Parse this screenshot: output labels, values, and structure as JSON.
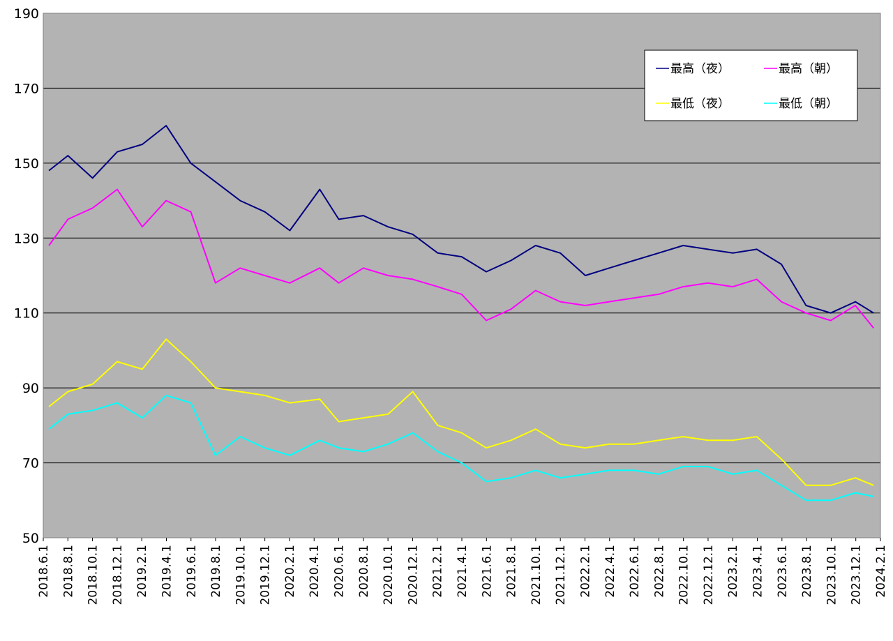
{
  "chart_data": {
    "type": "line",
    "title": "",
    "xlabel": "",
    "ylabel": "",
    "ylim": [
      50,
      190
    ],
    "yticks": [
      50,
      70,
      90,
      110,
      130,
      150,
      170,
      190
    ],
    "xlim": [
      "2018-06-01",
      "2024-02-01"
    ],
    "xtick_labels": [
      "2018.6.1",
      "2018.8.1",
      "2018.10.1",
      "2018.12.1",
      "2019.2.1",
      "2019.4.1",
      "2019.6.1",
      "2019.8.1",
      "2019.10.1",
      "2019.12.1",
      "2020.2.1",
      "2020.4.1",
      "2020.6.1",
      "2020.8.1",
      "2020.10.1",
      "2020.12.1",
      "2021.2.1",
      "2021.4.1",
      "2021.6.1",
      "2021.8.1",
      "2021.10.1",
      "2021.12.1",
      "2022.2.1",
      "2022.4.1",
      "2022.6.1",
      "2022.8.1",
      "2022.10.1",
      "2022.12.1",
      "2023.2.1",
      "2023.4.1",
      "2023.6.1",
      "2023.8.1",
      "2023.10.1",
      "2023.12.1",
      "2024.2.1"
    ],
    "grid": "horizontal",
    "background": "#B3B3B3",
    "legend_position": "top-right",
    "series": [
      {
        "name": "最高（夜）",
        "color": "#000080",
        "x": [
          "2018-06-15",
          "2018-08-01",
          "2018-10-01",
          "2018-12-01",
          "2019-02-01",
          "2019-04-01",
          "2019-06-01",
          "2019-08-01",
          "2019-10-01",
          "2019-12-01",
          "2020-02-01",
          "2020-04-15",
          "2020-06-01",
          "2020-08-01",
          "2020-10-01",
          "2020-12-01",
          "2021-02-01",
          "2021-04-01",
          "2021-06-01",
          "2021-08-01",
          "2021-10-01",
          "2021-12-01",
          "2022-02-01",
          "2022-04-01",
          "2022-06-01",
          "2022-08-01",
          "2022-10-01",
          "2022-12-01",
          "2023-02-01",
          "2023-04-01",
          "2023-06-01",
          "2023-08-01",
          "2023-10-01",
          "2023-12-01",
          "2024-01-15"
        ],
        "y": [
          148,
          152,
          146,
          153,
          155,
          160,
          150,
          145,
          140,
          137,
          132,
          143,
          135,
          136,
          133,
          131,
          126,
          125,
          121,
          124,
          128,
          126,
          120,
          122,
          124,
          126,
          128,
          127,
          126,
          127,
          123,
          112,
          110,
          113,
          110
        ]
      },
      {
        "name": "最高（朝）",
        "color": "#FF00FF",
        "x": [
          "2018-06-15",
          "2018-08-01",
          "2018-10-01",
          "2018-12-01",
          "2019-02-01",
          "2019-04-01",
          "2019-06-01",
          "2019-08-01",
          "2019-10-01",
          "2019-12-01",
          "2020-02-01",
          "2020-04-15",
          "2020-06-01",
          "2020-08-01",
          "2020-10-01",
          "2020-12-01",
          "2021-02-01",
          "2021-04-01",
          "2021-06-01",
          "2021-08-01",
          "2021-10-01",
          "2021-12-01",
          "2022-02-01",
          "2022-04-01",
          "2022-06-01",
          "2022-08-01",
          "2022-10-01",
          "2022-12-01",
          "2023-02-01",
          "2023-04-01",
          "2023-06-01",
          "2023-08-01",
          "2023-10-01",
          "2023-12-01",
          "2024-01-15"
        ],
        "y": [
          128,
          135,
          138,
          143,
          133,
          140,
          137,
          118,
          122,
          120,
          118,
          122,
          118,
          122,
          120,
          119,
          117,
          115,
          108,
          111,
          116,
          113,
          112,
          113,
          114,
          115,
          117,
          118,
          117,
          119,
          113,
          110,
          108,
          112,
          106
        ]
      },
      {
        "name": "最低（夜）",
        "color": "#FFFF00",
        "x": [
          "2018-06-15",
          "2018-08-01",
          "2018-10-01",
          "2018-12-01",
          "2019-02-01",
          "2019-04-01",
          "2019-06-01",
          "2019-08-01",
          "2019-10-01",
          "2019-12-01",
          "2020-02-01",
          "2020-04-15",
          "2020-06-01",
          "2020-08-01",
          "2020-10-01",
          "2020-12-01",
          "2021-02-01",
          "2021-04-01",
          "2021-06-01",
          "2021-08-01",
          "2021-10-01",
          "2021-12-01",
          "2022-02-01",
          "2022-04-01",
          "2022-06-01",
          "2022-08-01",
          "2022-10-01",
          "2022-12-01",
          "2023-02-01",
          "2023-04-01",
          "2023-06-01",
          "2023-08-01",
          "2023-10-01",
          "2023-12-01",
          "2024-01-15"
        ],
        "y": [
          85,
          89,
          91,
          97,
          95,
          103,
          97,
          90,
          89,
          88,
          86,
          87,
          81,
          82,
          83,
          89,
          80,
          78,
          74,
          76,
          79,
          75,
          74,
          75,
          75,
          76,
          77,
          76,
          76,
          77,
          71,
          64,
          64,
          66,
          64
        ]
      },
      {
        "name": "最低（朝）",
        "color": "#00FFFF",
        "x": [
          "2018-06-15",
          "2018-08-01",
          "2018-10-01",
          "2018-12-01",
          "2019-02-01",
          "2019-04-01",
          "2019-06-01",
          "2019-08-01",
          "2019-10-01",
          "2019-12-01",
          "2020-02-01",
          "2020-04-15",
          "2020-06-01",
          "2020-08-01",
          "2020-10-01",
          "2020-12-01",
          "2021-02-01",
          "2021-04-01",
          "2021-06-01",
          "2021-08-01",
          "2021-10-01",
          "2021-12-01",
          "2022-02-01",
          "2022-04-01",
          "2022-06-01",
          "2022-08-01",
          "2022-10-01",
          "2022-12-01",
          "2023-02-01",
          "2023-04-01",
          "2023-06-01",
          "2023-08-01",
          "2023-10-01",
          "2023-12-01",
          "2024-01-15"
        ],
        "y": [
          79,
          83,
          84,
          86,
          82,
          88,
          86,
          72,
          77,
          74,
          72,
          76,
          74,
          73,
          75,
          78,
          73,
          70,
          65,
          66,
          68,
          66,
          67,
          68,
          68,
          67,
          69,
          69,
          67,
          68,
          64,
          60,
          60,
          62,
          61
        ]
      }
    ]
  }
}
